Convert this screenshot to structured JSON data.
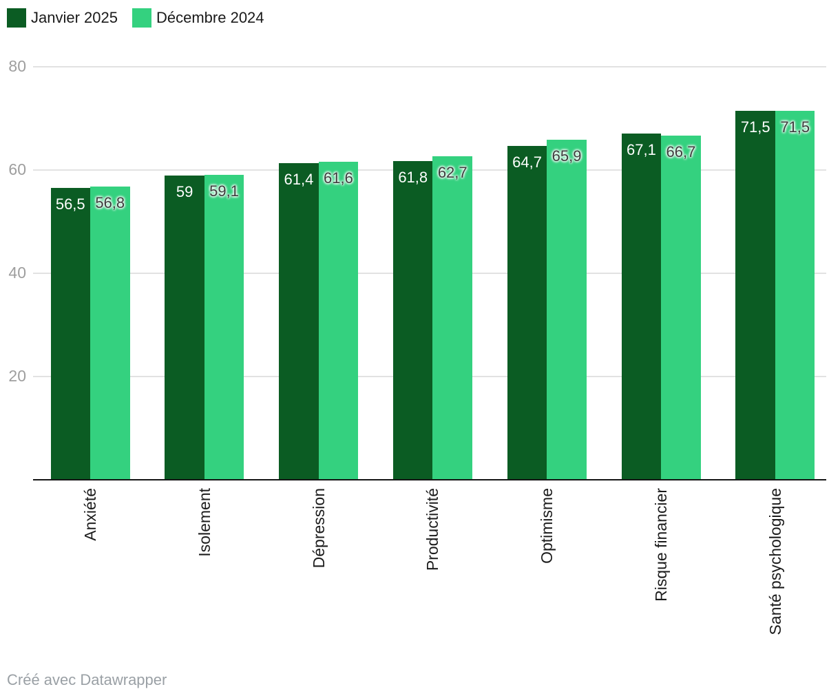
{
  "footer": {
    "credit": "Créé avec Datawrapper"
  },
  "chart_data": {
    "type": "bar",
    "title": "",
    "categories": [
      "Anxiété",
      "Isolement",
      "Dépression",
      "Productivité",
      "Optimisme",
      "Risque financier",
      "Santé psychologique"
    ],
    "series": [
      {
        "name": "Janvier 2025",
        "color": "#0b5c23",
        "values": [
          56.5,
          59,
          61.4,
          61.8,
          64.7,
          67.1,
          71.5
        ],
        "value_labels": [
          "56,5",
          "59",
          "61,4",
          "61,8",
          "64,7",
          "67,1",
          "71,5"
        ]
      },
      {
        "name": "Décembre 2024",
        "color": "#34d17f",
        "values": [
          56.8,
          59.1,
          61.6,
          62.7,
          65.9,
          66.7,
          71.5
        ],
        "value_labels": [
          "56,8",
          "59,1",
          "61,6",
          "62,7",
          "65,9",
          "66,7",
          "71,5"
        ]
      }
    ],
    "y_ticks": [
      20,
      40,
      60,
      80
    ],
    "ylim": [
      0,
      80
    ],
    "grid": "horizontal",
    "legend_position": "top-left",
    "credit": "Créé avec Datawrapper"
  }
}
